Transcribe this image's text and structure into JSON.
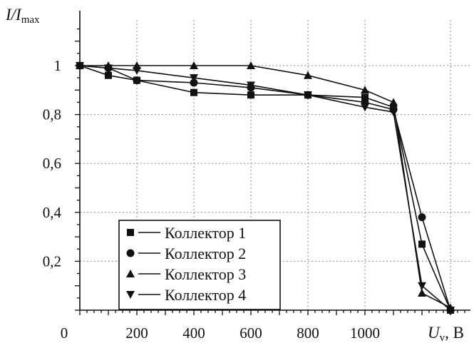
{
  "chart_data": {
    "type": "line",
    "ylabel_main": "I/I",
    "ylabel_sub": "max",
    "xlabel_main": "U",
    "xlabel_sub": "v",
    "xlabel_unit": ", В",
    "x_ticks": [
      {
        "value": 0,
        "label": "0"
      },
      {
        "value": 200,
        "label": "200"
      },
      {
        "value": 400,
        "label": "400"
      },
      {
        "value": 600,
        "label": "600"
      },
      {
        "value": 800,
        "label": "800"
      },
      {
        "value": 1000,
        "label": "1000"
      }
    ],
    "y_ticks": [
      {
        "value": 0.2,
        "label": "0,2"
      },
      {
        "value": 0.4,
        "label": "0,4"
      },
      {
        "value": 0.6,
        "label": "0,6"
      },
      {
        "value": 0.8,
        "label": "0,8"
      },
      {
        "value": 1.0,
        "label": "1"
      }
    ],
    "xlim": [
      0,
      1300
    ],
    "ylim": [
      0,
      1.07
    ],
    "grid": true,
    "legend_position": "bottom-left",
    "series": [
      {
        "name": "Коллектор 1",
        "marker": "square",
        "x": [
          0,
          100,
          200,
          400,
          600,
          800,
          1000,
          1100,
          1200,
          1300
        ],
        "y": [
          1.0,
          0.96,
          0.94,
          0.89,
          0.88,
          0.88,
          0.87,
          0.83,
          0.27,
          0.0
        ]
      },
      {
        "name": "Коллектор 2",
        "marker": "circle",
        "x": [
          0,
          100,
          200,
          400,
          600,
          800,
          1000,
          1100,
          1200,
          1300
        ],
        "y": [
          1.0,
          0.99,
          0.94,
          0.93,
          0.91,
          0.88,
          0.85,
          0.82,
          0.38,
          0.0
        ]
      },
      {
        "name": "Коллектор 3",
        "marker": "triangle-up",
        "x": [
          0,
          100,
          200,
          400,
          600,
          800,
          1000,
          1100,
          1200,
          1300
        ],
        "y": [
          1.0,
          1.0,
          1.0,
          1.0,
          1.0,
          0.96,
          0.9,
          0.85,
          0.07,
          0.01
        ]
      },
      {
        "name": "Коллектор 4",
        "marker": "triangle-down",
        "x": [
          0,
          100,
          200,
          400,
          600,
          800,
          1000,
          1100,
          1200,
          1300
        ],
        "y": [
          1.0,
          0.99,
          0.98,
          0.95,
          0.92,
          0.88,
          0.83,
          0.81,
          0.1,
          0.0
        ]
      }
    ]
  }
}
